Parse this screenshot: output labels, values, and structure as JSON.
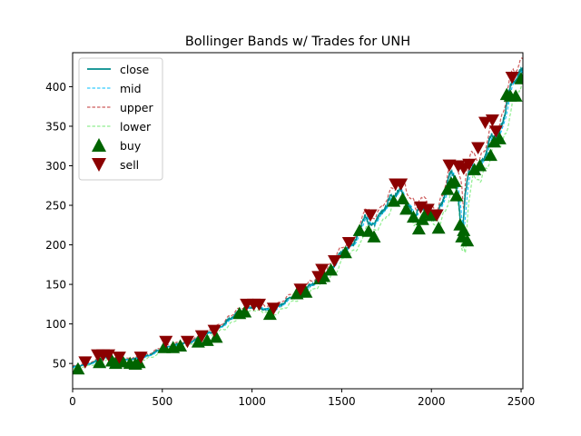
{
  "chart_data": {
    "type": "line",
    "title": "Bollinger Bands w/ Trades for UNH",
    "xlabel": "",
    "ylabel": "",
    "xlim": [
      0,
      2510
    ],
    "ylim": [
      18,
      443
    ],
    "grid": false,
    "legend_position": "upper left",
    "x_ticks": [
      0,
      500,
      1000,
      1500,
      2000,
      2500
    ],
    "y_ticks": [
      50,
      100,
      150,
      200,
      250,
      300,
      350,
      400
    ],
    "series": [
      {
        "name": "close",
        "style": "solid",
        "color": "#008b8b"
      },
      {
        "name": "mid",
        "style": "dashed",
        "color": "#00bfff"
      },
      {
        "name": "upper",
        "style": "dashed",
        "color": "#cd5c5c"
      },
      {
        "name": "lower",
        "style": "dashed",
        "color": "#90ee90"
      }
    ],
    "close_anchors": [
      [
        0,
        45
      ],
      [
        60,
        48
      ],
      [
        120,
        52
      ],
      [
        180,
        57
      ],
      [
        240,
        55
      ],
      [
        300,
        54
      ],
      [
        360,
        56
      ],
      [
        420,
        60
      ],
      [
        480,
        66
      ],
      [
        540,
        72
      ],
      [
        600,
        74
      ],
      [
        660,
        78
      ],
      [
        720,
        84
      ],
      [
        780,
        90
      ],
      [
        840,
        100
      ],
      [
        900,
        110
      ],
      [
        950,
        118
      ],
      [
        1000,
        122
      ],
      [
        1050,
        120
      ],
      [
        1100,
        116
      ],
      [
        1150,
        122
      ],
      [
        1200,
        130
      ],
      [
        1250,
        138
      ],
      [
        1300,
        143
      ],
      [
        1350,
        152
      ],
      [
        1400,
        162
      ],
      [
        1450,
        172
      ],
      [
        1500,
        190
      ],
      [
        1550,
        200
      ],
      [
        1600,
        215
      ],
      [
        1630,
        240
      ],
      [
        1650,
        222
      ],
      [
        1700,
        235
      ],
      [
        1750,
        250
      ],
      [
        1800,
        265
      ],
      [
        1830,
        270
      ],
      [
        1860,
        255
      ],
      [
        1900,
        235
      ],
      [
        1920,
        240
      ],
      [
        1950,
        250
      ],
      [
        1980,
        242
      ],
      [
        2000,
        236
      ],
      [
        2030,
        236
      ],
      [
        2060,
        250
      ],
      [
        2090,
        280
      ],
      [
        2110,
        292
      ],
      [
        2130,
        288
      ],
      [
        2150,
        260
      ],
      [
        2170,
        205
      ],
      [
        2190,
        270
      ],
      [
        2220,
        300
      ],
      [
        2260,
        295
      ],
      [
        2290,
        310
      ],
      [
        2320,
        330
      ],
      [
        2350,
        335
      ],
      [
        2380,
        340
      ],
      [
        2400,
        355
      ],
      [
        2420,
        385
      ],
      [
        2440,
        400
      ],
      [
        2470,
        410
      ],
      [
        2500,
        415
      ],
      [
        2510,
        412
      ]
    ],
    "buy_points": [
      [
        30,
        43
      ],
      [
        150,
        51
      ],
      [
        220,
        53
      ],
      [
        240,
        50
      ],
      [
        280,
        52
      ],
      [
        320,
        50
      ],
      [
        350,
        49
      ],
      [
        370,
        51
      ],
      [
        510,
        70
      ],
      [
        560,
        70
      ],
      [
        600,
        72
      ],
      [
        700,
        77
      ],
      [
        750,
        79
      ],
      [
        800,
        83
      ],
      [
        930,
        113
      ],
      [
        960,
        115
      ],
      [
        1100,
        112
      ],
      [
        1250,
        138
      ],
      [
        1300,
        140
      ],
      [
        1380,
        157
      ],
      [
        1400,
        160
      ],
      [
        1440,
        168
      ],
      [
        1520,
        190
      ],
      [
        1600,
        218
      ],
      [
        1650,
        217
      ],
      [
        1680,
        210
      ],
      [
        1790,
        255
      ],
      [
        1840,
        258
      ],
      [
        1860,
        245
      ],
      [
        1900,
        235
      ],
      [
        1930,
        220
      ],
      [
        1950,
        232
      ],
      [
        1970,
        240
      ],
      [
        2000,
        237
      ],
      [
        2040,
        221
      ],
      [
        2090,
        270
      ],
      [
        2110,
        278
      ],
      [
        2130,
        280
      ],
      [
        2140,
        262
      ],
      [
        2160,
        225
      ],
      [
        2170,
        210
      ],
      [
        2180,
        218
      ],
      [
        2200,
        205
      ],
      [
        2240,
        295
      ],
      [
        2270,
        300
      ],
      [
        2330,
        313
      ],
      [
        2350,
        330
      ],
      [
        2380,
        334
      ],
      [
        2420,
        390
      ],
      [
        2440,
        388
      ],
      [
        2470,
        388
      ],
      [
        2500,
        410
      ]
    ],
    "sell_points": [
      [
        70,
        52
      ],
      [
        140,
        61
      ],
      [
        170,
        61
      ],
      [
        200,
        61
      ],
      [
        260,
        58
      ],
      [
        380,
        58
      ],
      [
        520,
        78
      ],
      [
        640,
        78
      ],
      [
        720,
        85
      ],
      [
        790,
        92
      ],
      [
        970,
        125
      ],
      [
        1010,
        125
      ],
      [
        1040,
        125
      ],
      [
        1120,
        120
      ],
      [
        1270,
        144
      ],
      [
        1370,
        160
      ],
      [
        1390,
        169
      ],
      [
        1460,
        180
      ],
      [
        1540,
        203
      ],
      [
        1660,
        238
      ],
      [
        1800,
        277
      ],
      [
        1830,
        277
      ],
      [
        1940,
        248
      ],
      [
        1980,
        245
      ],
      [
        2030,
        238
      ],
      [
        2100,
        301
      ],
      [
        2150,
        300
      ],
      [
        2180,
        297
      ],
      [
        2210,
        302
      ],
      [
        2260,
        323
      ],
      [
        2300,
        355
      ],
      [
        2340,
        358
      ],
      [
        2360,
        344
      ],
      [
        2450,
        412
      ]
    ]
  }
}
